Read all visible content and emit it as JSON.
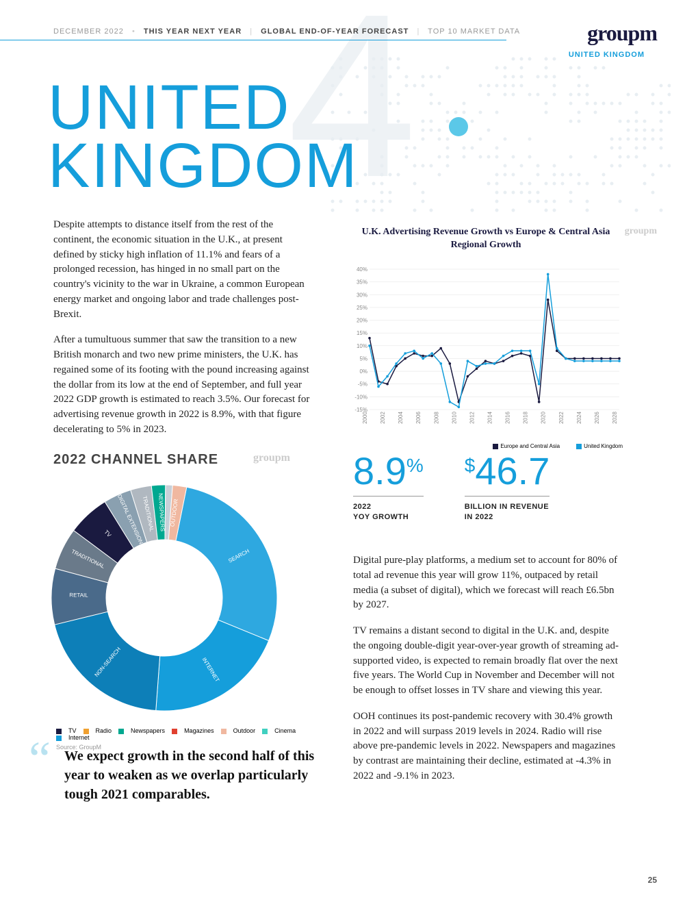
{
  "nav": {
    "date": "DECEMBER 2022",
    "a": "THIS YEAR NEXT YEAR",
    "b": "GLOBAL END-OF-YEAR FORECAST",
    "c": "TOP 10 MARKET DATA",
    "sub": "UNITED KINGDOM"
  },
  "logo": "groupm",
  "bignum": "4",
  "title": "UNITED\nKINGDOM",
  "paras_l": [
    "Despite attempts to distance itself from the rest of the continent, the economic situation in the U.K., at present defined by sticky high inflation of 11.1% and fears of a prolonged recession, has hinged in no small part on the country's vicinity to the war in Ukraine, a common European energy market and ongoing labor and trade challenges post-Brexit.",
    "After a tumultuous summer that saw the transition to a new British monarch and two new prime ministers, the U.K. has regained some of its footing with the pound increasing against the dollar from its low at the end of September, and full year 2022 GDP growth is estimated to reach 3.5%. Our forecast for advertising revenue growth in 2022 is 8.9%, with that figure decelerating to 5% in 2023."
  ],
  "linechart": {
    "title": "U.K. Advertising Revenue Growth vs Europe & Central Asia Regional Growth",
    "years": [
      "2000",
      "2002",
      "2004",
      "2006",
      "2008",
      "2010",
      "2012",
      "2014",
      "2016",
      "2018",
      "2020",
      "2022",
      "2024",
      "2026",
      "2028"
    ],
    "y_min": -15,
    "y_max": 40,
    "y_step": 5,
    "series": [
      {
        "name": "Europe and Central Asia",
        "color": "#1a1a40",
        "vals": [
          13,
          -4,
          -5,
          2,
          5,
          7,
          6,
          6,
          9,
          3,
          -12,
          -2,
          1,
          4,
          3,
          4,
          6,
          7,
          6,
          -12,
          28,
          8,
          5,
          5,
          5,
          5,
          5,
          5,
          5
        ]
      },
      {
        "name": "United Kingdom",
        "color": "#159edb",
        "vals": [
          10,
          -6,
          -2,
          3,
          7,
          8,
          5,
          7,
          3,
          -12,
          -14,
          4,
          2,
          3,
          3,
          6,
          8,
          8,
          8,
          -5,
          38,
          9,
          5,
          4,
          4,
          4,
          4,
          4,
          4
        ]
      }
    ]
  },
  "donut": {
    "title": "2022 CHANNEL SHARE",
    "source": "Source: GroupM",
    "segments": [
      {
        "label": "SEARCH",
        "val": 28,
        "color": "#2ea8e0"
      },
      {
        "label": "INTERNET",
        "val": 20,
        "color": "#159edb"
      },
      {
        "label": "NON-SEARCH",
        "val": 20,
        "color": "#0d7fb8"
      },
      {
        "label": "RETAIL",
        "val": 8,
        "color": "#4a6a8a"
      },
      {
        "label": "TRADITIONAL",
        "val": 6,
        "color": "#6a7a8a"
      },
      {
        "label": "TV",
        "val": 6,
        "color": "#1a1a40"
      },
      {
        "label": "DIGITAL EXTENSION",
        "val": 4,
        "color": "#8aa0b0"
      },
      {
        "label": "TRADITIONAL",
        "val": 3,
        "color": "#b0b8c0"
      },
      {
        "label": "NEWSPAPERS",
        "val": 2,
        "color": "#00a890"
      },
      {
        "label": "",
        "val": 1,
        "color": "#c8d0d8"
      },
      {
        "label": "OUTDOOR",
        "val": 2,
        "color": "#f0b8a0"
      }
    ],
    "legend": [
      {
        "name": "TV",
        "color": "#1a1a40"
      },
      {
        "name": "Radio",
        "color": "#f0a030"
      },
      {
        "name": "Newspapers",
        "color": "#00a890"
      },
      {
        "name": "Magazines",
        "color": "#e04030"
      },
      {
        "name": "Outdoor",
        "color": "#f0b8a0"
      },
      {
        "name": "Cinema",
        "color": "#40d0c0"
      },
      {
        "name": "Internet",
        "color": "#159edb"
      }
    ]
  },
  "stats": [
    {
      "value": "8.9",
      "sup": "%",
      "label": "2022\nYOY GROWTH"
    },
    {
      "prefix": "$",
      "value": "46.7",
      "label": "BILLION IN REVENUE\nIN 2022"
    }
  ],
  "paras_r": [
    "Digital pure-play platforms, a medium set to account for 80% of total ad revenue this year will grow 11%, outpaced by retail media (a subset of digital), which we forecast will reach £6.5bn by 2027.",
    "TV remains a distant second to digital in the U.K. and, despite the ongoing double-digit year-over-year growth of streaming ad-supported video, is expected to remain broadly flat over the next five years. The World Cup in November and December will not be enough to offset losses in TV share and viewing this year.",
    "OOH continues its post-pandemic recovery with 30.4% growth in 2022 and will surpass 2019 levels in 2024. Radio will rise above pre-pandemic levels in 2022. Newspapers and magazines by contrast are maintaining their decline, estimated at -4.3% in 2022 and -9.1% in 2023."
  ],
  "quote": "We expect growth in the second half of this year to weaken as we overlap particularly tough 2021 comparables.",
  "pagenum": "25"
}
